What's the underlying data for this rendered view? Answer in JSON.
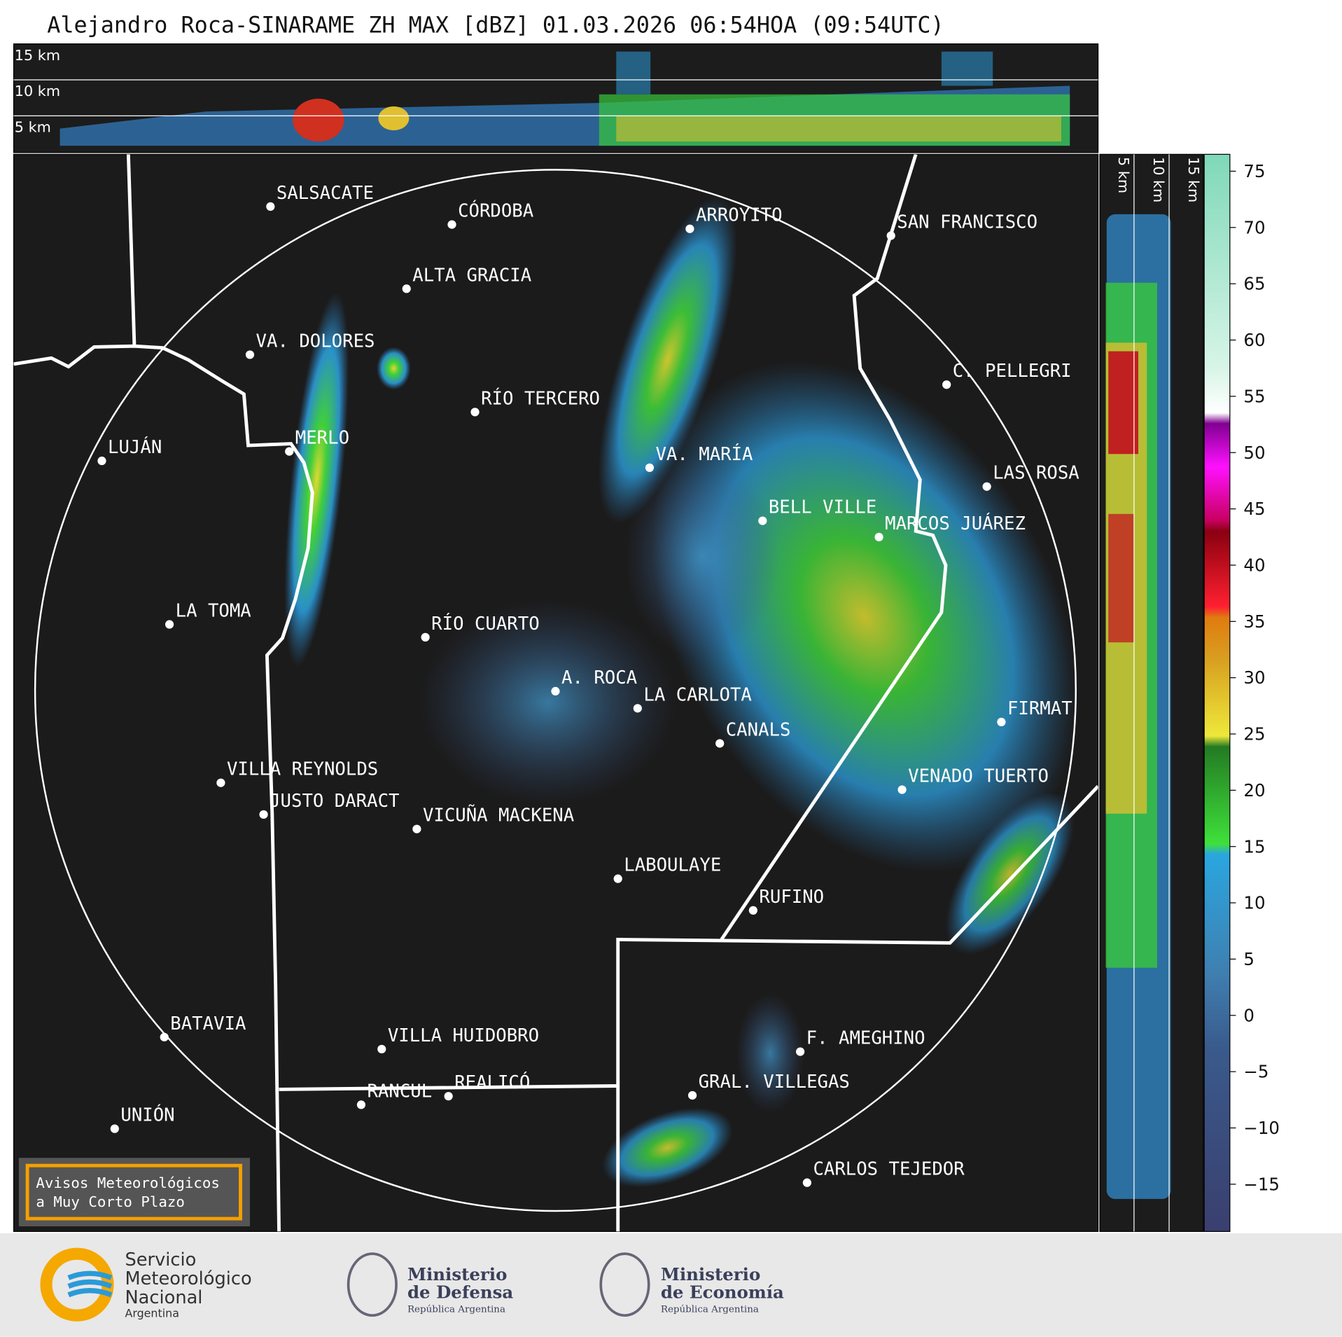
{
  "title": "Alejandro Roca-SINARAME ZH MAX [dBZ] 01.03.2026 06:54HOA (09:54UTC)",
  "top_height_labels": [
    "15 km",
    "10 km",
    "5 km"
  ],
  "side_height_labels": [
    "5 km",
    "10 km",
    "15 km"
  ],
  "cities": [
    "SALSACATE",
    "CÓRDOBA",
    "ARROYITO",
    "SAN FRANCISCO",
    "ALTA GRACIA",
    "VA. DOLORES",
    "C. PELLEGRI",
    "RÍO TERCERO",
    "LUJÁN",
    "MERLO",
    "VA. MARÍA",
    "LAS ROSA",
    "BELL VILLE",
    "MARCOS JUÁREZ",
    "LA TOMA",
    "RÍO CUARTO",
    "A. ROCA",
    "LA CARLOTA",
    "FIRMAT",
    "CANALS",
    "VILLA REYNOLDS",
    "VENADO TUERTO",
    "JUSTO DARACT",
    "VICUÑA MACKENA",
    "LABOULAYE",
    "RUFINO",
    "BATAVIA",
    "VILLA HUIDOBRO",
    "F. AMEGHINO",
    "GRAL. VILLEGAS",
    "RANCUL",
    "REALICÓ",
    "UNIÓN",
    "CARLOS TEJEDOR"
  ],
  "colorbar": {
    "lim": [
      -19.2,
      76.5
    ],
    "ticks": [
      {
        "value": -15,
        "label": "−15"
      },
      {
        "value": -10,
        "label": "−10"
      },
      {
        "value": -5,
        "label": "−5"
      },
      0,
      5,
      10,
      15,
      20,
      25,
      30,
      35,
      40,
      45,
      50,
      55,
      60,
      65,
      70,
      75
    ]
  },
  "notice": [
    "Avisos Meteorológicos",
    "a Muy Corto Plazo"
  ],
  "logos": {
    "smn": [
      "Servicio",
      "Meteorológico",
      "Nacional",
      "Argentina"
    ],
    "defensa": [
      "Ministerio",
      "de Defensa",
      "República Argentina"
    ],
    "economia": [
      "Ministerio",
      "de Economía",
      "República Argentina"
    ]
  }
}
